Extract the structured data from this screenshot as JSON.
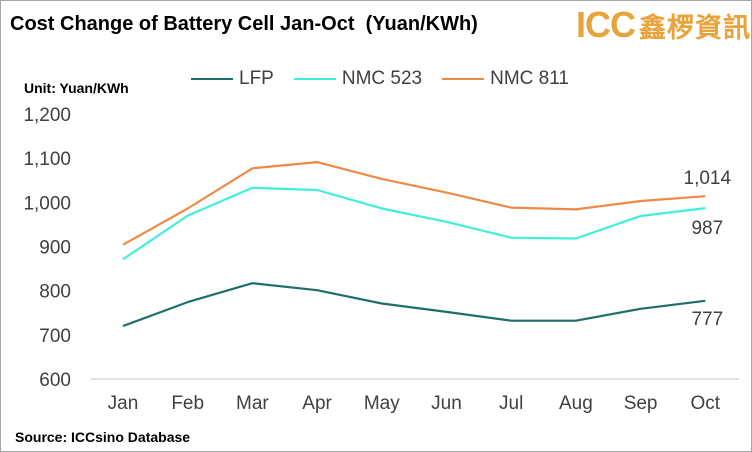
{
  "title": "Cost Change of Battery Cell Jan-Oct  (Yuan/KWh)",
  "logo": {
    "latin": "ICC",
    "cjk": "鑫椤資訊"
  },
  "unit_label": "Unit: Yuan/KWh",
  "source": "Source: ICCsino Database",
  "chart_data": {
    "type": "line",
    "categories": [
      "Jan",
      "Feb",
      "Mar",
      "Apr",
      "May",
      "Jun",
      "Jul",
      "Aug",
      "Sep",
      "Oct"
    ],
    "series": [
      {
        "name": "LFP",
        "color": "#1e6e6a",
        "values": [
          720,
          774,
          817,
          801,
          771,
          752,
          732,
          732,
          759,
          777
        ]
      },
      {
        "name": "NMC 523",
        "color": "#3ff0d8",
        "values": [
          871,
          970,
          1033,
          1028,
          986,
          956,
          920,
          918,
          969,
          987
        ]
      },
      {
        "name": "NMC 811",
        "color": "#ee8a44",
        "values": [
          904,
          986,
          1077,
          1091,
          1053,
          1022,
          988,
          984,
          1003,
          1014
        ]
      }
    ],
    "ylim": [
      600,
      1200
    ],
    "yticks": [
      "600",
      "700",
      "800",
      "900",
      "1,000",
      "1,100",
      "1,200"
    ],
    "grid": false,
    "legend": "top",
    "data_labels": [
      {
        "series": "NMC 811",
        "category": "Oct",
        "text": "1,014"
      },
      {
        "series": "NMC 523",
        "category": "Oct",
        "text": "987"
      },
      {
        "series": "LFP",
        "category": "Oct",
        "text": "777"
      }
    ]
  }
}
